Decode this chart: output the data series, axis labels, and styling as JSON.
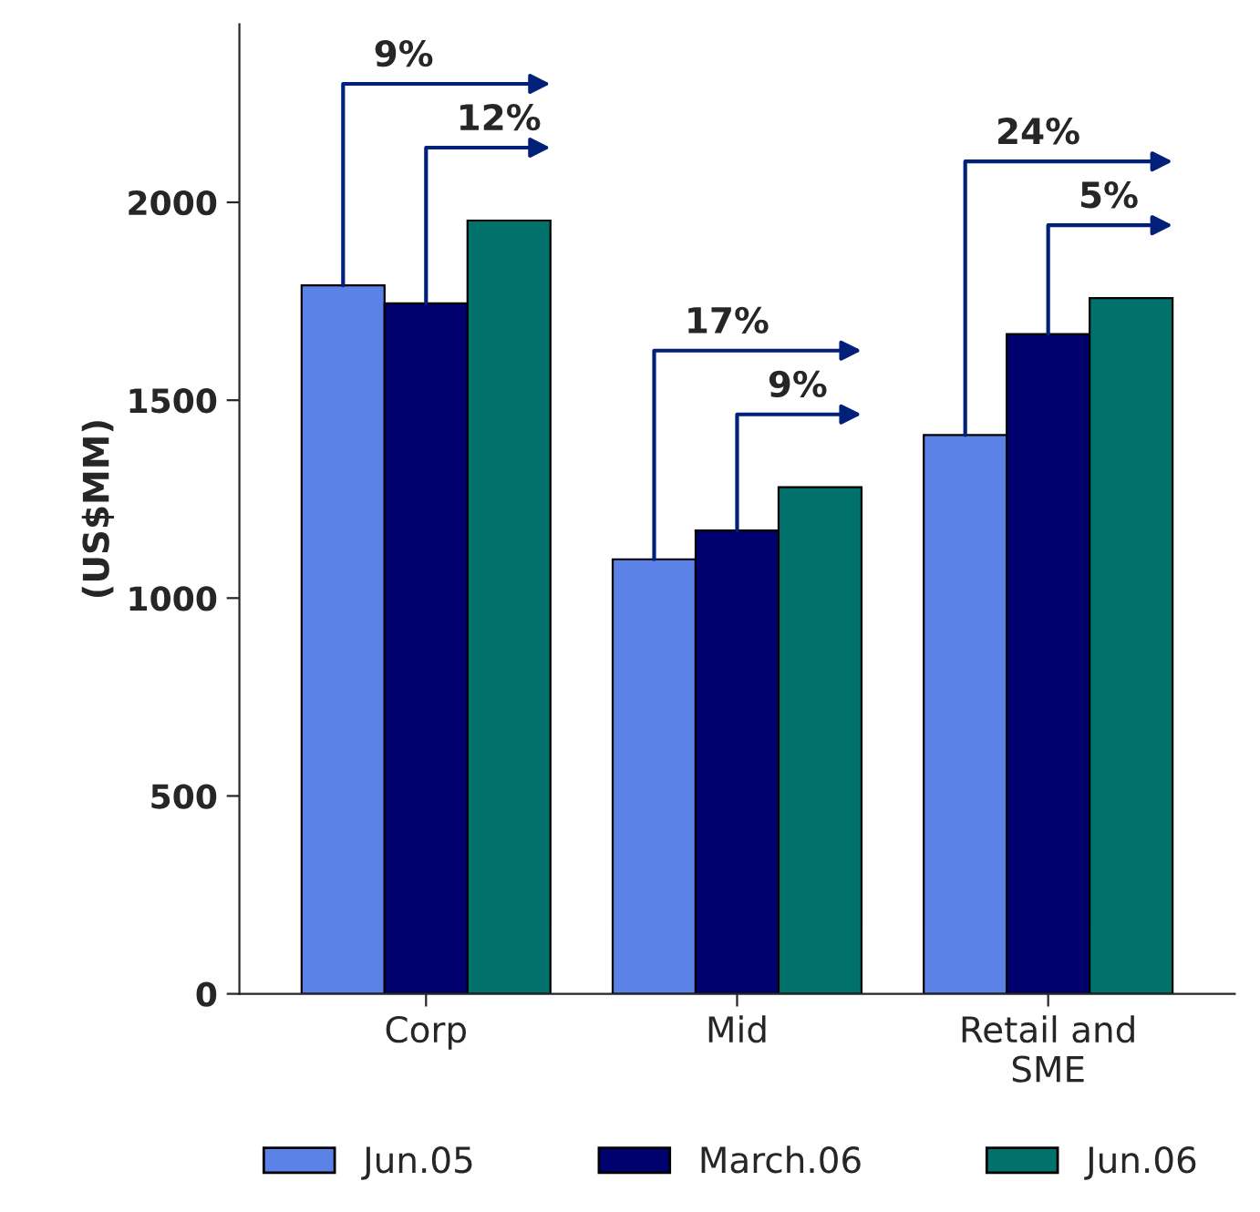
{
  "chart_data": {
    "type": "bar",
    "ylabel": "(US$MM)",
    "categories": [
      "Corp",
      "Mid",
      "Retail and\nSME"
    ],
    "series": [
      {
        "name": "Jun.05",
        "color": "#5b82e6",
        "values": [
          1790,
          1098,
          1412
        ]
      },
      {
        "name": "March.06",
        "color": "#00006e",
        "values": [
          1745,
          1171,
          1667
        ]
      },
      {
        "name": "Jun.06",
        "color": "#00716b",
        "values": [
          1954,
          1280,
          1758
        ]
      }
    ],
    "ylim": [
      0,
      2450
    ],
    "yticks": [
      0,
      500,
      1000,
      1500,
      2000
    ],
    "grid": false,
    "legend": "bottom",
    "annotations": [
      "9%",
      "12%",
      "17%",
      "9%",
      "24%",
      "5%"
    ]
  }
}
